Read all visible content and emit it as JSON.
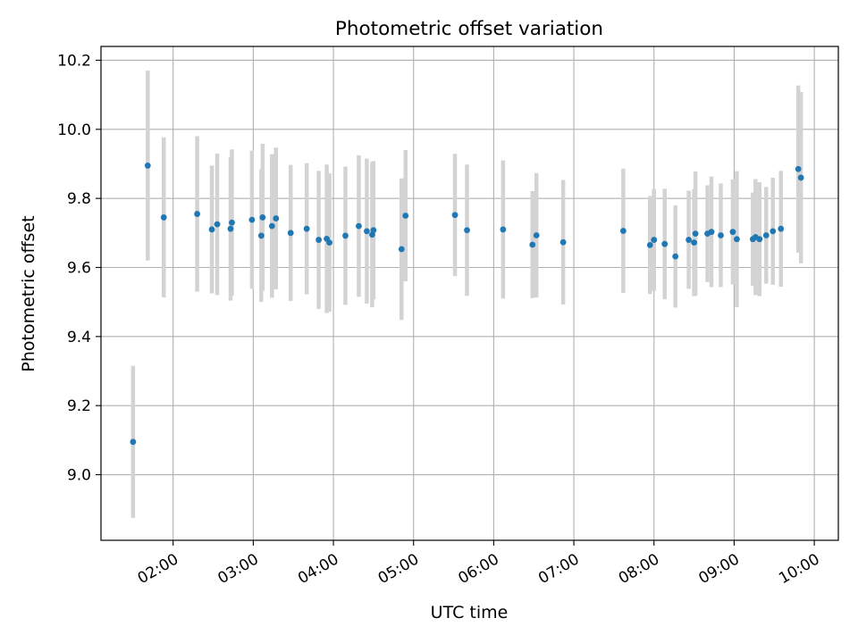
{
  "chart_data": {
    "type": "scatter",
    "title": "Photometric offset variation",
    "xlabel": "UTC time",
    "ylabel": "Photometric offset",
    "grid": true,
    "xlim": [
      "01:06",
      "10:18"
    ],
    "ylim": [
      8.81,
      10.24
    ],
    "x_ticks": [
      "02:00",
      "03:00",
      "04:00",
      "05:00",
      "06:00",
      "07:00",
      "08:00",
      "09:00",
      "10:00"
    ],
    "y_ticks": [
      "9.0",
      "9.2",
      "9.4",
      "9.6",
      "9.8",
      "10.0",
      "10.2"
    ],
    "colors": {
      "point": "#1f77b4",
      "errorbar": "#d3d3d3",
      "grid": "#b0b0b0"
    },
    "series": [
      {
        "x": [
          "01:30",
          "01:41",
          "01:53",
          "02:18",
          "02:29",
          "02:33",
          "02:43",
          "02:44",
          "02:59",
          "03:06",
          "03:07",
          "03:14",
          "03:17",
          "03:28",
          "03:40",
          "03:49",
          "03:55",
          "03:57",
          "04:09",
          "04:19",
          "04:25",
          "04:29",
          "04:30",
          "04:51",
          "04:54",
          "05:31",
          "05:40",
          "06:07",
          "06:29",
          "06:32",
          "06:52",
          "07:37",
          "07:57",
          "08:00",
          "08:08",
          "08:16",
          "08:26",
          "08:30",
          "08:31",
          "08:40",
          "08:43",
          "08:50",
          "08:59",
          "09:02",
          "09:14",
          "09:16",
          "09:19",
          "09:24",
          "09:29",
          "09:35",
          "09:48",
          "09:50"
        ],
        "y": [
          9.095,
          9.895,
          9.745,
          9.755,
          9.71,
          9.725,
          9.712,
          9.73,
          9.738,
          9.692,
          9.745,
          9.72,
          9.742,
          9.7,
          9.712,
          9.68,
          9.683,
          9.672,
          9.692,
          9.72,
          9.705,
          9.695,
          9.708,
          9.653,
          9.75,
          9.752,
          9.708,
          9.71,
          9.666,
          9.693,
          9.673,
          9.706,
          9.665,
          9.68,
          9.668,
          9.632,
          9.68,
          9.672,
          9.698,
          9.698,
          9.703,
          9.693,
          9.703,
          9.682,
          9.682,
          9.688,
          9.682,
          9.693,
          9.705,
          9.712,
          9.885,
          9.86
        ],
        "yerr": [
          0.22,
          0.275,
          0.232,
          0.225,
          0.185,
          0.205,
          0.208,
          0.212,
          0.2,
          0.192,
          0.213,
          0.208,
          0.205,
          0.197,
          0.19,
          0.2,
          0.215,
          0.2,
          0.2,
          0.205,
          0.21,
          0.21,
          0.2,
          0.205,
          0.19,
          0.177,
          0.19,
          0.2,
          0.155,
          0.18,
          0.18,
          0.18,
          0.142,
          0.148,
          0.16,
          0.148,
          0.142,
          0.155,
          0.18,
          0.14,
          0.16,
          0.15,
          0.152,
          0.197,
          0.135,
          0.168,
          0.165,
          0.14,
          0.155,
          0.168,
          0.242,
          0.248
        ]
      }
    ]
  }
}
